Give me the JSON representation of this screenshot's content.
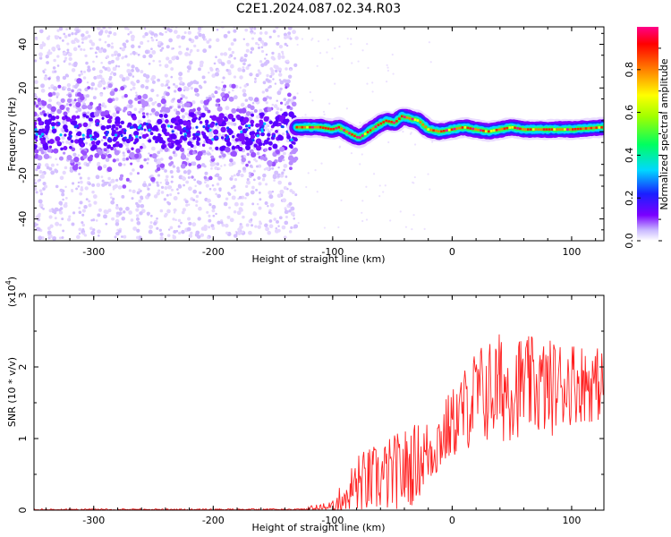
{
  "title": "C2E1.2024.087.02.34.R03",
  "chart_data": [
    {
      "type": "heatmap",
      "xlabel": "Height of straight line (km)",
      "ylabel": "Frequency (Hz)",
      "xlim": [
        -350,
        127
      ],
      "ylim": [
        -50,
        48
      ],
      "x_ticks": [
        -300,
        -200,
        -100,
        0,
        100
      ],
      "y_ticks": [
        -40,
        -20,
        0,
        20,
        40
      ],
      "x_tick_labels": [
        "-300",
        "-200",
        "-100",
        "0",
        "100"
      ],
      "y_tick_labels": [
        "-40",
        "-20",
        "0",
        "20",
        "40"
      ],
      "colorbar": {
        "label": "Normalized spectral amplitude",
        "range": [
          0.0,
          1.0
        ],
        "ticks": [
          0.0,
          0.2,
          0.4,
          0.6,
          0.8
        ],
        "tick_labels": [
          "0.0",
          "0.2",
          "0.4",
          "0.6",
          "0.8"
        ]
      },
      "noise_region": {
        "x_from": -350,
        "x_to": -130,
        "freq_spread": 48
      },
      "ridge": [
        {
          "x": -130,
          "f": 2
        },
        {
          "x": -110,
          "f": 2
        },
        {
          "x": -100,
          "f": 1
        },
        {
          "x": -95,
          "f": 2
        },
        {
          "x": -85,
          "f": -1
        },
        {
          "x": -78,
          "f": -3
        },
        {
          "x": -70,
          "f": 0
        },
        {
          "x": -62,
          "f": 3
        },
        {
          "x": -55,
          "f": 5
        },
        {
          "x": -48,
          "f": 4
        },
        {
          "x": -42,
          "f": 7
        },
        {
          "x": -35,
          "f": 6
        },
        {
          "x": -28,
          "f": 5
        },
        {
          "x": -20,
          "f": 1
        },
        {
          "x": -10,
          "f": 0
        },
        {
          "x": 0,
          "f": 1
        },
        {
          "x": 10,
          "f": 2
        },
        {
          "x": 20,
          "f": 1
        },
        {
          "x": 30,
          "f": 0
        },
        {
          "x": 40,
          "f": 1
        },
        {
          "x": 50,
          "f": 2
        },
        {
          "x": 60,
          "f": 1
        },
        {
          "x": 80,
          "f": 1
        },
        {
          "x": 100,
          "f": 1
        },
        {
          "x": 127,
          "f": 2
        }
      ]
    },
    {
      "type": "line",
      "xlabel": "Height of straight line (km)",
      "ylabel": "SNR (10 * v/v)",
      "scale_label_prefix": "(x10",
      "scale_label_exponent": "4",
      "scale_label_suffix": ")",
      "xlim": [
        -350,
        127
      ],
      "ylim": [
        0,
        3
      ],
      "x_ticks": [
        -300,
        -200,
        -100,
        0,
        100
      ],
      "y_ticks": [
        0,
        1,
        2,
        3
      ],
      "x_tick_labels": [
        "-300",
        "-200",
        "-100",
        "0",
        "100"
      ],
      "y_tick_labels": [
        "0",
        "1",
        "2",
        "3"
      ],
      "series": [
        {
          "color": "#ff2020",
          "envelope": [
            {
              "x": -350,
              "mean": 0.0,
              "amp": 0.01
            },
            {
              "x": -130,
              "mean": 0.0,
              "amp": 0.02
            },
            {
              "x": -100,
              "mean": 0.05,
              "amp": 0.08
            },
            {
              "x": -80,
              "mean": 0.35,
              "amp": 0.45
            },
            {
              "x": -60,
              "mean": 0.45,
              "amp": 0.5
            },
            {
              "x": -40,
              "mean": 0.55,
              "amp": 0.6
            },
            {
              "x": -20,
              "mean": 0.8,
              "amp": 0.5
            },
            {
              "x": 0,
              "mean": 1.2,
              "amp": 0.5
            },
            {
              "x": 20,
              "mean": 1.6,
              "amp": 0.7
            },
            {
              "x": 40,
              "mean": 1.7,
              "amp": 0.8
            },
            {
              "x": 60,
              "mean": 1.75,
              "amp": 0.7
            },
            {
              "x": 80,
              "mean": 1.7,
              "amp": 0.7
            },
            {
              "x": 100,
              "mean": 1.8,
              "amp": 0.6
            },
            {
              "x": 127,
              "mean": 1.75,
              "amp": 0.5
            }
          ]
        }
      ]
    }
  ]
}
